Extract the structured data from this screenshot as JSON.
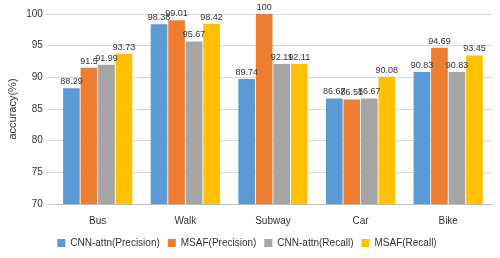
{
  "chart_data": {
    "type": "bar",
    "y_label": "accuracy(%)",
    "categories": [
      "Bus",
      "Walk",
      "Subway",
      "Car",
      "Bike"
    ],
    "series": [
      {
        "name": "CNN-attn(Precision)",
        "color": "#5b9bd5",
        "values": [
          88.29,
          98.38,
          89.74,
          86.67,
          90.83
        ]
      },
      {
        "name": "MSAF(Precision)",
        "color": "#ed7d31",
        "values": [
          91.5,
          99.01,
          100,
          86.51,
          94.69
        ]
      },
      {
        "name": "CNN-attn(Recall)",
        "color": "#a5a5a5",
        "values": [
          91.99,
          95.67,
          92.11,
          86.67,
          90.83
        ]
      },
      {
        "name": "MSAF(Recall)",
        "color": "#ffc000",
        "values": [
          93.73,
          98.42,
          92.11,
          90.08,
          93.45
        ]
      }
    ],
    "ylim": [
      70,
      100
    ],
    "yticks": [
      70,
      75,
      80,
      85,
      90,
      95,
      100
    ],
    "grid": true,
    "legend": "bottom",
    "data_labels": true
  }
}
